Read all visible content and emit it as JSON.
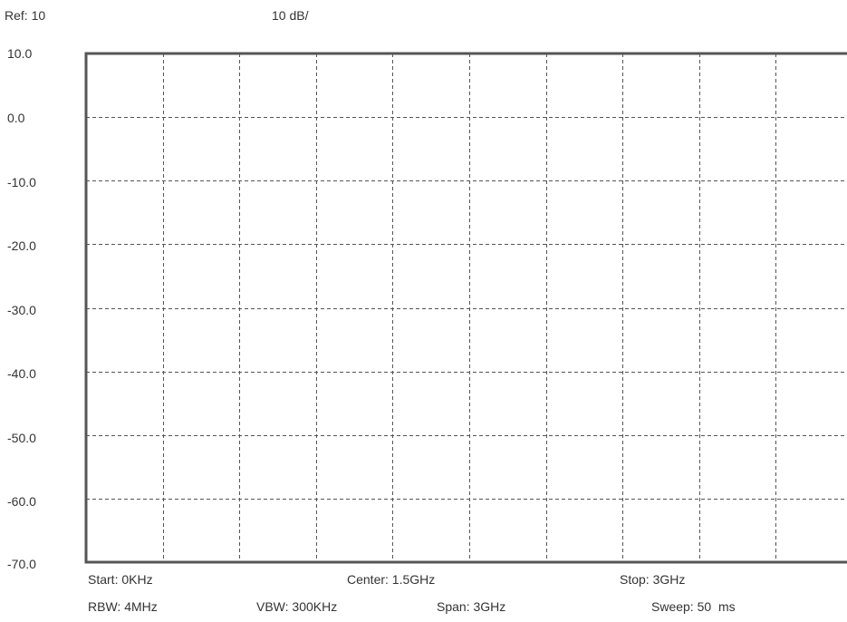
{
  "header": {
    "ref_label": "Ref: 10",
    "scale_label": "10 dB/"
  },
  "y_axis": {
    "ticks": [
      "10.0",
      "0.0",
      "-10.0",
      "-20.0",
      "-30.0",
      "-40.0",
      "-50.0",
      "-60.0",
      "-70.0"
    ],
    "max_db": 10,
    "min_db": -70,
    "db_per_div": 10
  },
  "grid": {
    "vertical_divisions": 10,
    "horizontal_divisions": 8,
    "line_style": "dashed",
    "frame_color": "#555555",
    "grid_color": "#555555"
  },
  "footer": {
    "start": "Start: 0KHz",
    "center": "Center: 1.5GHz",
    "stop": "Stop: 3GHz",
    "rbw": "RBW: 4MHz",
    "vbw": "VBW: 300KHz",
    "span": "Span: 3GHz",
    "sweep": "Sweep: 50  ms"
  }
}
